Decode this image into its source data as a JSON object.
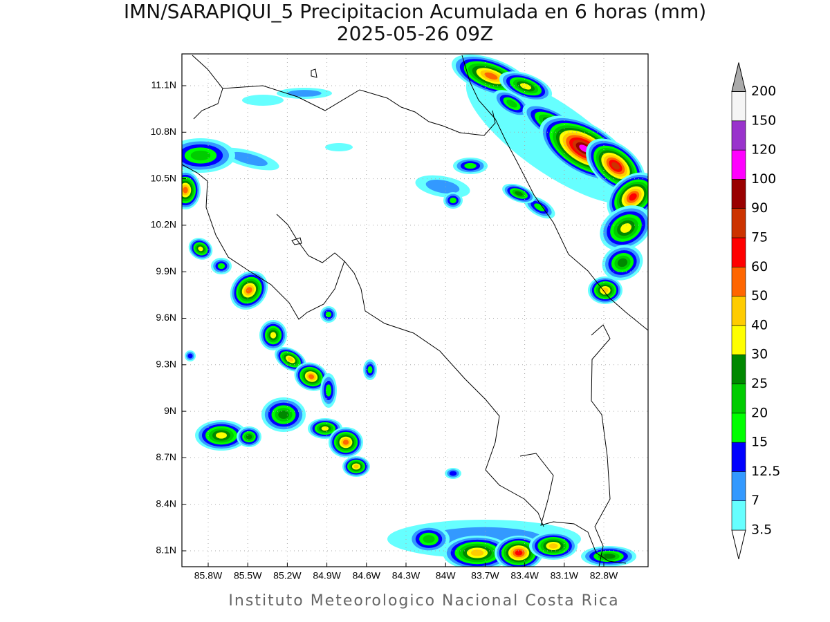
{
  "title": "IMN/SARAPIQUI_5 Precipitacion Acumulada en 6 horas (mm)",
  "subtitle": "2025-05-26 09Z",
  "lon_labels": [
    "85.8W",
    "85.5W",
    "85.2W",
    "84.9W",
    "84.6W",
    "84.3W",
    "84W",
    "83.7W",
    "83.4W",
    "83.1W",
    "82.8W"
  ],
  "lat_labels": [
    "11.1N",
    "10.8N",
    "10.5N",
    "10.2N",
    "9.9N",
    "9.6N",
    "9.3N",
    "9N",
    "8.7N",
    "8.4N",
    "8.1N"
  ],
  "colorbar": {
    "labels": [
      "3.5",
      "7",
      "12.5",
      "15",
      "20",
      "25",
      "30",
      "40",
      "50",
      "60",
      "75",
      "90",
      "100",
      "120",
      "150",
      "200"
    ],
    "colors": [
      "#66ffff",
      "#3399ff",
      "#0000ff",
      "#00ff00",
      "#00cc00",
      "#008800",
      "#ffff00",
      "#ffcc00",
      "#ff6600",
      "#ff0000",
      "#cc3300",
      "#990000",
      "#ff00ff",
      "#9933cc",
      "#f5f5f5"
    ],
    "under_color": "#ffffff",
    "over_color": "#aaaaaa"
  },
  "footer": "Instituto Meteorologico Nacional Costa Rica"
}
